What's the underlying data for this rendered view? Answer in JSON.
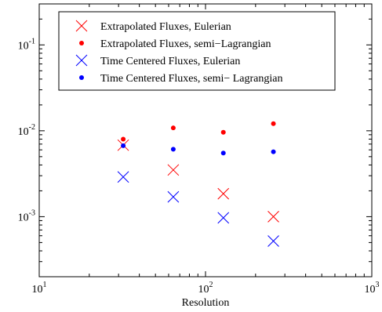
{
  "chart_data": {
    "type": "scatter",
    "title": "",
    "xlabel": "Resolution",
    "ylabel": "",
    "xscale": "log",
    "yscale": "log",
    "xlim": [
      10,
      1000
    ],
    "ylim": [
      0.0002,
      0.3
    ],
    "grid": false,
    "legend_position": "top",
    "x_ticks": [
      {
        "base": "10",
        "exp": "1",
        "value": 10
      },
      {
        "base": "10",
        "exp": "2",
        "value": 100
      },
      {
        "base": "10",
        "exp": "3",
        "value": 1000
      }
    ],
    "y_ticks": [
      {
        "base": "10",
        "exp": "-3",
        "value": 0.001
      },
      {
        "base": "10",
        "exp": "-2",
        "value": 0.01
      },
      {
        "base": "10",
        "exp": "-1",
        "value": 0.1
      }
    ],
    "series": [
      {
        "name": "Extrapolated Fluxes, Eulerian",
        "color": "#ff0000",
        "marker": "x",
        "x": [
          32,
          64,
          128,
          256
        ],
        "y": [
          0.0068,
          0.0035,
          0.00185,
          0.001
        ]
      },
      {
        "name": "Extrapolated Fluxes, semi−Lagrangian",
        "color": "#ff0000",
        "marker": "dot",
        "x": [
          32,
          64,
          128,
          256
        ],
        "y": [
          0.008,
          0.0108,
          0.0096,
          0.0121
        ]
      },
      {
        "name": "Time Centered Fluxes, Eulerian",
        "color": "#0000ff",
        "marker": "x",
        "x": [
          32,
          64,
          128,
          256
        ],
        "y": [
          0.0029,
          0.0017,
          0.00097,
          0.00052
        ]
      },
      {
        "name": "Time Centered Fluxes, semi− Lagrangian",
        "color": "#0000ff",
        "marker": "dot",
        "x": [
          32,
          64,
          128,
          256
        ],
        "y": [
          0.0067,
          0.0061,
          0.0055,
          0.0057
        ]
      }
    ]
  }
}
